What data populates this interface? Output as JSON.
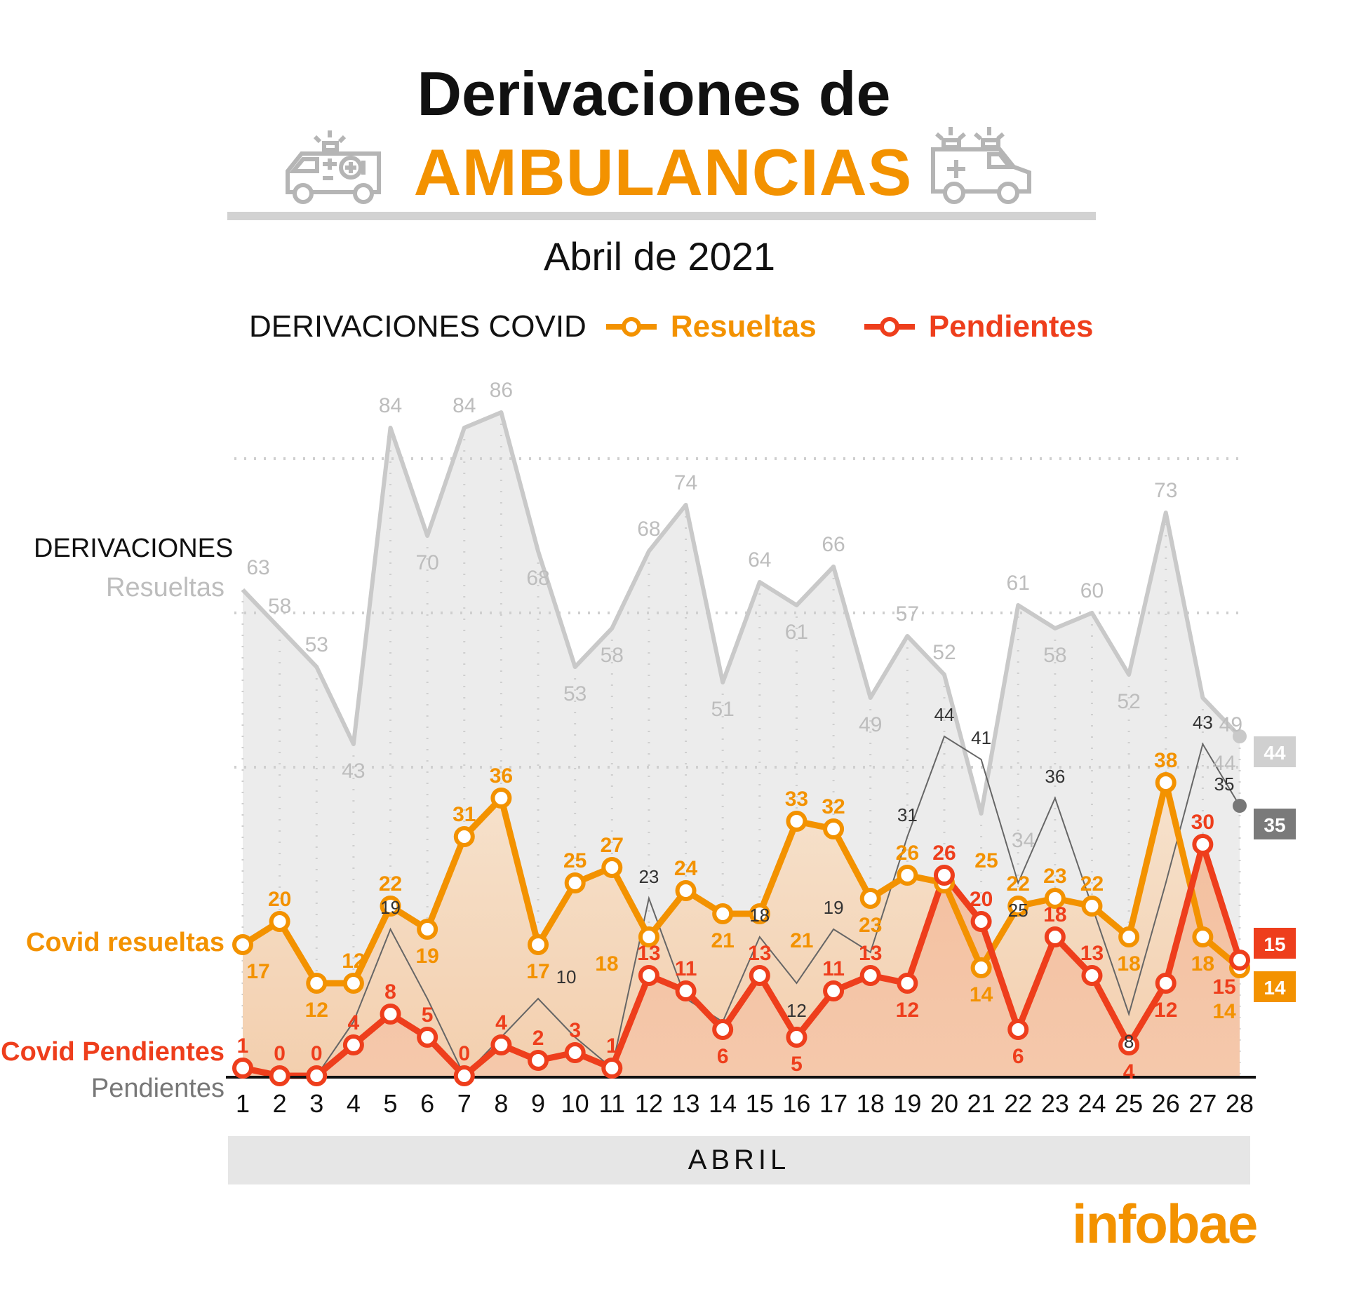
{
  "header": {
    "title_line1": "Derivaciones de",
    "title_line2": "AMBULANCIAS",
    "subtitle": "Abril de 2021",
    "icons": [
      "ambulance-icon",
      "ambulance-icon"
    ]
  },
  "legend": {
    "title": "DERIVACIONES COVID",
    "items": [
      {
        "label": "Resueltas",
        "color": "#f39200"
      },
      {
        "label": "Pendientes",
        "color": "#ee3e1c"
      }
    ]
  },
  "side_labels": {
    "derivaciones": "DERIVACIONES",
    "resueltas": "Resueltas",
    "covid_resueltas": "Covid resueltas",
    "covid_pendientes": "Covid Pendientes",
    "pendientes": "Pendientes"
  },
  "xaxis_title": "ABRIL",
  "brand": "infobae",
  "colors": {
    "orange": "#f39200",
    "red": "#ee3e1c",
    "gray_area": "#ececec",
    "gray_line": "#c9c9c9",
    "dark_line": "#666666"
  },
  "chart_data": {
    "type": "line",
    "x": [
      1,
      2,
      3,
      4,
      5,
      6,
      7,
      8,
      9,
      10,
      11,
      12,
      13,
      14,
      15,
      16,
      17,
      18,
      19,
      20,
      21,
      22,
      23,
      24,
      25,
      26,
      27,
      28
    ],
    "ylim": [
      0,
      90
    ],
    "grid": "dotted",
    "series": [
      {
        "name": "Resueltas",
        "group": "DERIVACIONES",
        "style": "area",
        "color": "#c9c9c9",
        "values": [
          63,
          58,
          53,
          43,
          84,
          70,
          84,
          86,
          68,
          53,
          58,
          68,
          74,
          51,
          64,
          61,
          66,
          49,
          57,
          52,
          34,
          61,
          58,
          60,
          52,
          73,
          49,
          44
        ],
        "labeled": [
          1,
          1,
          1,
          1,
          1,
          1,
          1,
          1,
          1,
          1,
          1,
          1,
          1,
          1,
          1,
          1,
          1,
          1,
          1,
          1,
          1,
          1,
          1,
          1,
          1,
          1,
          1,
          1
        ]
      },
      {
        "name": "Pendientes",
        "group": "DERIVACIONES",
        "style": "thin",
        "color": "#666666",
        "values": [
          1,
          0,
          0,
          7,
          19,
          10,
          0,
          5,
          10,
          5,
          1,
          23,
          10,
          7,
          18,
          12,
          19,
          16,
          31,
          44,
          41,
          25,
          36,
          22,
          8,
          25,
          43,
          35
        ],
        "labeled": [
          0,
          0,
          0,
          0,
          1,
          0,
          0,
          0,
          1,
          0,
          0,
          1,
          0,
          0,
          1,
          1,
          1,
          0,
          1,
          1,
          1,
          1,
          1,
          0,
          1,
          0,
          1,
          1
        ]
      },
      {
        "name": "Covid resueltas",
        "style": "marker",
        "color": "#f39200",
        "values": [
          17,
          20,
          12,
          12,
          22,
          19,
          31,
          36,
          17,
          25,
          27,
          18,
          24,
          21,
          21,
          33,
          32,
          23,
          26,
          25,
          14,
          22,
          23,
          22,
          18,
          38,
          18,
          14
        ],
        "labeled": [
          1,
          1,
          1,
          1,
          1,
          1,
          1,
          1,
          1,
          1,
          1,
          1,
          1,
          1,
          1,
          1,
          1,
          1,
          1,
          1,
          1,
          1,
          1,
          1,
          1,
          1,
          1,
          1
        ]
      },
      {
        "name": "Covid Pendientes",
        "style": "marker",
        "color": "#ee3e1c",
        "values": [
          1,
          0,
          0,
          4,
          8,
          5,
          0,
          4,
          2,
          3,
          1,
          13,
          11,
          6,
          13,
          5,
          11,
          13,
          12,
          26,
          20,
          6,
          18,
          13,
          4,
          12,
          30,
          15
        ],
        "labeled": [
          1,
          1,
          1,
          1,
          1,
          1,
          1,
          1,
          1,
          1,
          1,
          1,
          1,
          1,
          1,
          1,
          1,
          1,
          1,
          1,
          1,
          1,
          1,
          1,
          1,
          1,
          1,
          1
        ]
      }
    ],
    "end_tags": [
      {
        "value": 44,
        "color": "#d0d0d0"
      },
      {
        "value": 35,
        "color": "#7a7a7a"
      },
      {
        "value": 15,
        "color": "#ee3e1c"
      },
      {
        "value": 14,
        "color": "#f39200"
      }
    ]
  }
}
